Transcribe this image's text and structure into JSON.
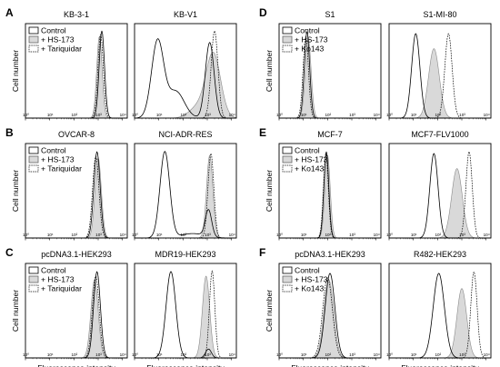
{
  "chart_data": [
    {
      "type": "histogram",
      "letter": "A",
      "ylabel": "Cell number",
      "xlabel": "",
      "legend": [
        "Control",
        "+ HS-173",
        "+ Tariquidar"
      ],
      "xtick_labels": [
        "10⁰",
        "10¹",
        "10²",
        "10³",
        "10⁴"
      ],
      "panels": [
        {
          "title": "KB-3-1",
          "series": [
            {
              "name": "Control",
              "style": "solid",
              "peaks": [
                {
                  "x": 3.15,
                  "w": 0.11,
                  "h": 0.98
                }
              ]
            },
            {
              "name": "+ HS-173",
              "style": "filled",
              "peaks": [
                {
                  "x": 3.05,
                  "w": 0.11,
                  "h": 0.92
                }
              ]
            },
            {
              "name": "+ Tariquidar",
              "style": "dashed",
              "peaks": [
                {
                  "x": 3.1,
                  "w": 0.11,
                  "h": 0.94
                }
              ]
            }
          ]
        },
        {
          "title": "KB-V1",
          "series": [
            {
              "name": "Control",
              "style": "solid",
              "peaks": [
                {
                  "x": 0.95,
                  "w": 0.25,
                  "h": 0.86
                },
                {
                  "x": 1.7,
                  "w": 0.35,
                  "h": 0.3
                },
                {
                  "x": 3.1,
                  "w": 0.18,
                  "h": 0.85
                }
              ]
            },
            {
              "name": "+ HS-173",
              "style": "filled",
              "peaks": [
                {
                  "x": 3.25,
                  "w": 0.3,
                  "h": 0.72
                },
                {
                  "x": 2.6,
                  "w": 0.35,
                  "h": 0.12
                }
              ]
            },
            {
              "name": "+ Tariquidar",
              "style": "dashed",
              "peaks": [
                {
                  "x": 3.3,
                  "w": 0.14,
                  "h": 0.98
                }
              ]
            }
          ]
        }
      ]
    },
    {
      "type": "histogram",
      "letter": "B",
      "ylabel": "Cell number",
      "xlabel": "",
      "legend": [
        "Control",
        "+ HS-173",
        "+ Tariquidar"
      ],
      "xtick_labels": [
        "10⁰",
        "10¹",
        "10²",
        "10³",
        "10⁴"
      ],
      "panels": [
        {
          "title": "OVCAR-8",
          "series": [
            {
              "name": "Control",
              "style": "solid",
              "peaks": [
                {
                  "x": 2.95,
                  "w": 0.13,
                  "h": 0.97
                }
              ]
            },
            {
              "name": "+ HS-173",
              "style": "filled",
              "peaks": [
                {
                  "x": 3.0,
                  "w": 0.13,
                  "h": 0.9
                }
              ]
            },
            {
              "name": "+ Tariquidar",
              "style": "dashed",
              "peaks": [
                {
                  "x": 2.9,
                  "w": 0.13,
                  "h": 0.92
                }
              ]
            }
          ]
        },
        {
          "title": "NCI-ADR-RES",
          "series": [
            {
              "name": "Control",
              "style": "solid",
              "peaks": [
                {
                  "x": 1.25,
                  "w": 0.2,
                  "h": 0.97
                },
                {
                  "x": 2.4,
                  "w": 0.5,
                  "h": 0.05
                },
                {
                  "x": 3.05,
                  "w": 0.13,
                  "h": 0.3
                }
              ]
            },
            {
              "name": "+ HS-173",
              "style": "filled",
              "peaks": [
                {
                  "x": 3.1,
                  "w": 0.13,
                  "h": 0.93
                }
              ]
            },
            {
              "name": "+ Tariquidar",
              "style": "dashed",
              "peaks": [
                {
                  "x": 3.15,
                  "w": 0.12,
                  "h": 0.95
                }
              ]
            }
          ]
        }
      ]
    },
    {
      "type": "histogram",
      "letter": "C",
      "ylabel": "Cell number",
      "xlabel": "Fluorescence intensity",
      "legend": [
        "Control",
        "+ HS-173",
        "+ Tariquidar"
      ],
      "xtick_labels": [
        "10⁰",
        "10¹",
        "10²",
        "10³",
        "10⁴"
      ],
      "panels": [
        {
          "title": "pcDNA3.1-HEK293",
          "series": [
            {
              "name": "Control",
              "style": "solid",
              "peaks": [
                {
                  "x": 2.95,
                  "w": 0.14,
                  "h": 0.97
                }
              ]
            },
            {
              "name": "+ HS-173",
              "style": "filled",
              "peaks": [
                {
                  "x": 2.85,
                  "w": 0.15,
                  "h": 0.88
                }
              ]
            },
            {
              "name": "+ Tariquidar",
              "style": "dashed",
              "peaks": [
                {
                  "x": 2.9,
                  "w": 0.14,
                  "h": 0.92
                }
              ]
            }
          ]
        },
        {
          "title": "MDR19-HEK293",
          "series": [
            {
              "name": "Control",
              "style": "solid",
              "peaks": [
                {
                  "x": 1.5,
                  "w": 0.2,
                  "h": 0.97
                },
                {
                  "x": 3.05,
                  "w": 0.12,
                  "h": 0.1
                }
              ]
            },
            {
              "name": "+ HS-173",
              "style": "filled",
              "peaks": [
                {
                  "x": 2.95,
                  "w": 0.15,
                  "h": 0.92
                }
              ]
            },
            {
              "name": "+ Tariquidar",
              "style": "dashed",
              "peaks": [
                {
                  "x": 3.2,
                  "w": 0.11,
                  "h": 0.98
                }
              ]
            }
          ]
        }
      ]
    },
    {
      "type": "histogram",
      "letter": "D",
      "ylabel": "Cell number",
      "xlabel": "",
      "legend": [
        "Control",
        "+ HS-173",
        "+ Ko143"
      ],
      "xtick_labels": [
        "10⁰",
        "10¹",
        "10²",
        "10³",
        "10⁴"
      ],
      "panels": [
        {
          "title": "S1",
          "series": [
            {
              "name": "Control",
              "style": "solid",
              "peaks": [
                {
                  "x": 1.15,
                  "w": 0.11,
                  "h": 0.97
                }
              ]
            },
            {
              "name": "+ HS-173",
              "style": "filled",
              "peaks": [
                {
                  "x": 1.2,
                  "w": 0.12,
                  "h": 0.9
                }
              ]
            },
            {
              "name": "+ Ko143",
              "style": "dashed",
              "peaks": [
                {
                  "x": 1.1,
                  "w": 0.11,
                  "h": 0.92
                }
              ]
            }
          ]
        },
        {
          "title": "S1-MI-80",
          "series": [
            {
              "name": "Control",
              "style": "solid",
              "peaks": [
                {
                  "x": 1.1,
                  "w": 0.17,
                  "h": 0.95
                }
              ]
            },
            {
              "name": "+ HS-173",
              "style": "filled",
              "peaks": [
                {
                  "x": 1.85,
                  "w": 0.22,
                  "h": 0.78
                }
              ]
            },
            {
              "name": "+ Ko143",
              "style": "dashed",
              "peaks": [
                {
                  "x": 2.45,
                  "w": 0.15,
                  "h": 0.95
                }
              ]
            }
          ]
        }
      ]
    },
    {
      "type": "histogram",
      "letter": "E",
      "ylabel": "Cell number",
      "xlabel": "",
      "legend": [
        "Control",
        "+ HS-173",
        "+ Ko143"
      ],
      "xtick_labels": [
        "10⁰",
        "10¹",
        "10²",
        "10³",
        "10⁴"
      ],
      "panels": [
        {
          "title": "MCF-7",
          "series": [
            {
              "name": "Control",
              "style": "solid",
              "peaks": [
                {
                  "x": 1.95,
                  "w": 0.1,
                  "h": 0.97
                }
              ]
            },
            {
              "name": "+ HS-173",
              "style": "filled",
              "peaks": [
                {
                  "x": 2.0,
                  "w": 0.11,
                  "h": 0.93
                }
              ]
            },
            {
              "name": "+ Ko143",
              "style": "dashed",
              "peaks": [
                {
                  "x": 1.93,
                  "w": 0.1,
                  "h": 0.95
                }
              ]
            }
          ]
        },
        {
          "title": "MCF7-FLV1000",
          "series": [
            {
              "name": "Control",
              "style": "solid",
              "peaks": [
                {
                  "x": 1.85,
                  "w": 0.17,
                  "h": 0.95
                }
              ]
            },
            {
              "name": "+ HS-173",
              "style": "filled",
              "peaks": [
                {
                  "x": 2.8,
                  "w": 0.22,
                  "h": 0.78
                }
              ]
            },
            {
              "name": "+ Ko143",
              "style": "dashed",
              "peaks": [
                {
                  "x": 3.3,
                  "w": 0.13,
                  "h": 0.97
                }
              ]
            }
          ]
        }
      ]
    },
    {
      "type": "histogram",
      "letter": "F",
      "ylabel": "Cell number",
      "xlabel": "Fluorescence intensity",
      "legend": [
        "Control",
        "+ HS-173",
        "+ Ko143"
      ],
      "xtick_labels": [
        "10⁰",
        "10¹",
        "10²",
        "10³",
        "10⁴"
      ],
      "panels": [
        {
          "title": "pcDNA3.1-HEK293",
          "series": [
            {
              "name": "Control",
              "style": "solid",
              "peaks": [
                {
                  "x": 2.1,
                  "w": 0.2,
                  "h": 0.95
                }
              ]
            },
            {
              "name": "+ HS-173",
              "style": "filled",
              "peaks": [
                {
                  "x": 2.05,
                  "w": 0.2,
                  "h": 0.88
                }
              ]
            },
            {
              "name": "+ Ko143",
              "style": "dashed",
              "peaks": [
                {
                  "x": 2.0,
                  "w": 0.2,
                  "h": 0.9
                }
              ]
            }
          ]
        },
        {
          "title": "R482-HEK293",
          "series": [
            {
              "name": "Control",
              "style": "solid",
              "peaks": [
                {
                  "x": 2.05,
                  "w": 0.23,
                  "h": 0.95
                }
              ]
            },
            {
              "name": "+ HS-173",
              "style": "filled",
              "peaks": [
                {
                  "x": 3.0,
                  "w": 0.2,
                  "h": 0.78
                }
              ]
            },
            {
              "name": "+ Ko143",
              "style": "dashed",
              "peaks": [
                {
                  "x": 3.5,
                  "w": 0.13,
                  "h": 0.97
                }
              ]
            }
          ]
        }
      ]
    }
  ]
}
